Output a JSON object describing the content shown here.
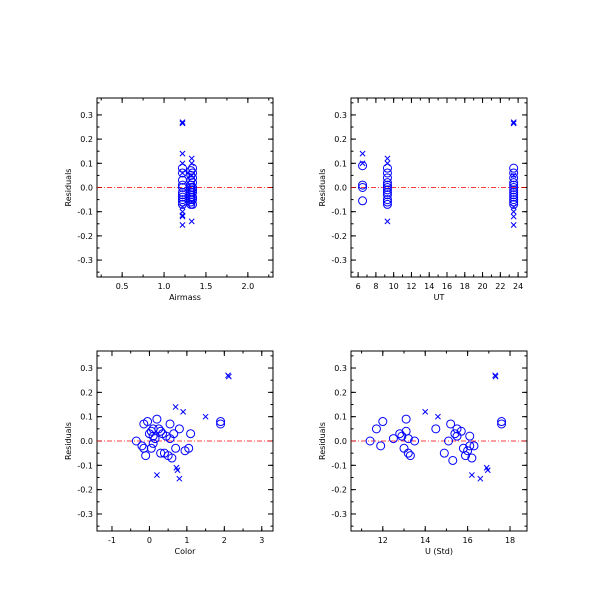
{
  "colors": {
    "marker": "#0000ff",
    "reference_line": "#ff0000",
    "axes": "#000000"
  },
  "chart_data": [
    {
      "type": "scatter",
      "title": "",
      "xlabel": "Airmass",
      "ylabel": "Residuals",
      "xlim": [
        0.2,
        2.3
      ],
      "ylim": [
        -0.37,
        0.37
      ],
      "xticks": [
        "0.5",
        "1.0",
        "1.5",
        "2.0"
      ],
      "yticks": [
        "-0.3",
        "-0.2",
        "-0.1",
        "0.0",
        "0.1",
        "0.2",
        "0.3"
      ],
      "reference_line_y": 0,
      "grid": false,
      "series": [
        {
          "marker": "circle",
          "x": [
            1.22,
            1.22,
            1.22,
            1.22,
            1.22,
            1.22,
            1.22,
            1.22,
            1.22,
            1.22,
            1.22,
            1.32,
            1.32,
            1.32,
            1.32,
            1.32,
            1.32,
            1.32,
            1.32,
            1.32,
            1.32,
            1.32,
            1.32,
            1.34,
            1.34,
            1.34,
            1.34,
            1.34,
            1.34,
            1.34,
            1.34,
            1.34,
            1.34
          ],
          "y": [
            0.08,
            0.06,
            0.03,
            0.01,
            0.0,
            -0.02,
            -0.03,
            -0.04,
            -0.05,
            -0.06,
            -0.07,
            0.07,
            0.05,
            0.03,
            0.01,
            0.0,
            -0.01,
            -0.02,
            -0.03,
            -0.04,
            -0.05,
            -0.06,
            -0.07,
            0.08,
            0.06,
            0.04,
            0.02,
            0.0,
            -0.01,
            -0.02,
            -0.04,
            -0.05,
            -0.07
          ]
        },
        {
          "marker": "cross",
          "x": [
            1.22,
            1.22,
            1.22,
            1.22,
            1.22,
            1.22,
            1.22,
            1.22,
            1.22,
            1.22,
            1.33,
            1.33,
            1.33,
            1.33,
            1.33
          ],
          "y": [
            0.27,
            0.265,
            0.14,
            0.1,
            0.06,
            -0.08,
            -0.1,
            -0.115,
            -0.12,
            -0.155,
            0.12,
            0.1,
            0.05,
            -0.06,
            -0.14
          ]
        }
      ]
    },
    {
      "type": "scatter",
      "title": "",
      "xlabel": "UT",
      "ylabel": "Residuals",
      "xlim": [
        5.2,
        25
      ],
      "ylim": [
        -0.37,
        0.37
      ],
      "xticks": [
        "6",
        "8",
        "10",
        "12",
        "14",
        "16",
        "18",
        "20",
        "22",
        "24"
      ],
      "yticks": [
        "-0.3",
        "-0.2",
        "-0.1",
        "0.0",
        "0.1",
        "0.2",
        "0.3"
      ],
      "reference_line_y": 0,
      "grid": false,
      "series": [
        {
          "marker": "circle",
          "x": [
            6.5,
            6.5,
            6.5,
            6.5,
            9.3,
            9.3,
            9.3,
            9.3,
            9.3,
            9.3,
            9.3,
            9.3,
            9.3,
            9.3,
            9.3,
            9.3,
            23.5,
            23.5,
            23.5,
            23.5,
            23.5,
            23.5,
            23.5,
            23.5,
            23.5,
            23.5,
            23.5,
            23.5,
            23.5
          ],
          "y": [
            0.09,
            0.01,
            0.0,
            -0.055,
            0.08,
            0.06,
            0.04,
            0.02,
            0.01,
            0.0,
            -0.01,
            -0.02,
            -0.03,
            -0.05,
            -0.06,
            -0.07,
            0.08,
            0.06,
            0.04,
            0.02,
            0.01,
            0.0,
            -0.01,
            -0.02,
            -0.03,
            -0.04,
            -0.05,
            -0.06,
            -0.07
          ]
        },
        {
          "marker": "cross",
          "x": [
            6.5,
            6.5,
            9.3,
            9.3,
            9.3,
            23.5,
            23.5,
            23.5,
            23.5,
            23.5,
            23.5,
            23.5
          ],
          "y": [
            0.14,
            0.1,
            0.12,
            0.1,
            -0.14,
            0.27,
            0.265,
            0.05,
            -0.08,
            -0.1,
            -0.12,
            -0.155
          ]
        }
      ]
    },
    {
      "type": "scatter",
      "title": "",
      "xlabel": "Color",
      "ylabel": "Residuals",
      "xlim": [
        -1.4,
        3.3
      ],
      "ylim": [
        -0.37,
        0.37
      ],
      "xticks": [
        "-1",
        "0",
        "1",
        "2",
        "3"
      ],
      "yticks": [
        "-0.3",
        "-0.2",
        "-0.1",
        "0.0",
        "0.1",
        "0.2",
        "0.3"
      ],
      "reference_line_y": 0,
      "grid": false,
      "series": [
        {
          "marker": "circle",
          "x": [
            -0.35,
            -0.2,
            -0.15,
            -0.15,
            -0.1,
            -0.05,
            0.0,
            0.05,
            0.05,
            0.1,
            0.1,
            0.1,
            0.15,
            0.2,
            0.25,
            0.3,
            0.3,
            0.35,
            0.4,
            0.45,
            0.5,
            0.55,
            0.55,
            0.6,
            0.65,
            0.7,
            0.8,
            0.95,
            1.05,
            1.1,
            1.9,
            1.9
          ],
          "y": [
            0.0,
            -0.02,
            -0.03,
            0.07,
            -0.06,
            0.08,
            0.03,
            -0.03,
            0.04,
            0.02,
            0.05,
            -0.01,
            0.01,
            0.09,
            0.05,
            -0.05,
            0.04,
            0.03,
            -0.05,
            0.02,
            -0.06,
            0.01,
            0.07,
            -0.07,
            0.03,
            -0.03,
            0.05,
            -0.04,
            -0.03,
            0.03,
            0.08,
            0.07
          ]
        },
        {
          "marker": "cross",
          "x": [
            0.2,
            0.7,
            0.72,
            0.75,
            0.8,
            0.9,
            1.5,
            2.1,
            2.12
          ],
          "y": [
            -0.14,
            0.14,
            -0.11,
            -0.12,
            -0.155,
            0.12,
            0.1,
            0.27,
            0.265
          ]
        }
      ]
    },
    {
      "type": "scatter",
      "title": "",
      "xlabel": "U (Std)",
      "ylabel": "Residuals",
      "xlim": [
        10.5,
        18.8
      ],
      "ylim": [
        -0.37,
        0.37
      ],
      "xticks": [
        "12",
        "14",
        "16",
        "18"
      ],
      "yticks": [
        "-0.3",
        "-0.2",
        "-0.1",
        "0.0",
        "0.1",
        "0.2",
        "0.3"
      ],
      "reference_line_y": 0,
      "grid": false,
      "series": [
        {
          "marker": "circle",
          "x": [
            11.4,
            11.7,
            11.9,
            12.0,
            12.5,
            12.8,
            12.9,
            13.0,
            13.1,
            13.1,
            13.2,
            13.2,
            13.3,
            13.5,
            14.5,
            14.9,
            15.1,
            15.2,
            15.3,
            15.4,
            15.5,
            15.5,
            15.7,
            15.8,
            15.9,
            16.0,
            16.1,
            16.1,
            16.2,
            16.3,
            17.6,
            17.6
          ],
          "y": [
            0.0,
            0.05,
            -0.02,
            0.08,
            0.01,
            0.03,
            0.02,
            -0.03,
            0.09,
            0.04,
            -0.05,
            0.01,
            -0.06,
            0.0,
            0.05,
            -0.05,
            0.0,
            0.07,
            -0.08,
            0.03,
            0.05,
            0.02,
            0.04,
            -0.03,
            -0.06,
            -0.04,
            0.02,
            -0.02,
            -0.07,
            -0.02,
            0.08,
            0.07
          ]
        },
        {
          "marker": "cross",
          "x": [
            14.0,
            14.6,
            16.2,
            16.6,
            16.9,
            16.95,
            17.3,
            17.32
          ],
          "y": [
            0.12,
            0.1,
            -0.14,
            -0.155,
            -0.11,
            -0.12,
            0.27,
            0.265
          ]
        }
      ]
    }
  ]
}
